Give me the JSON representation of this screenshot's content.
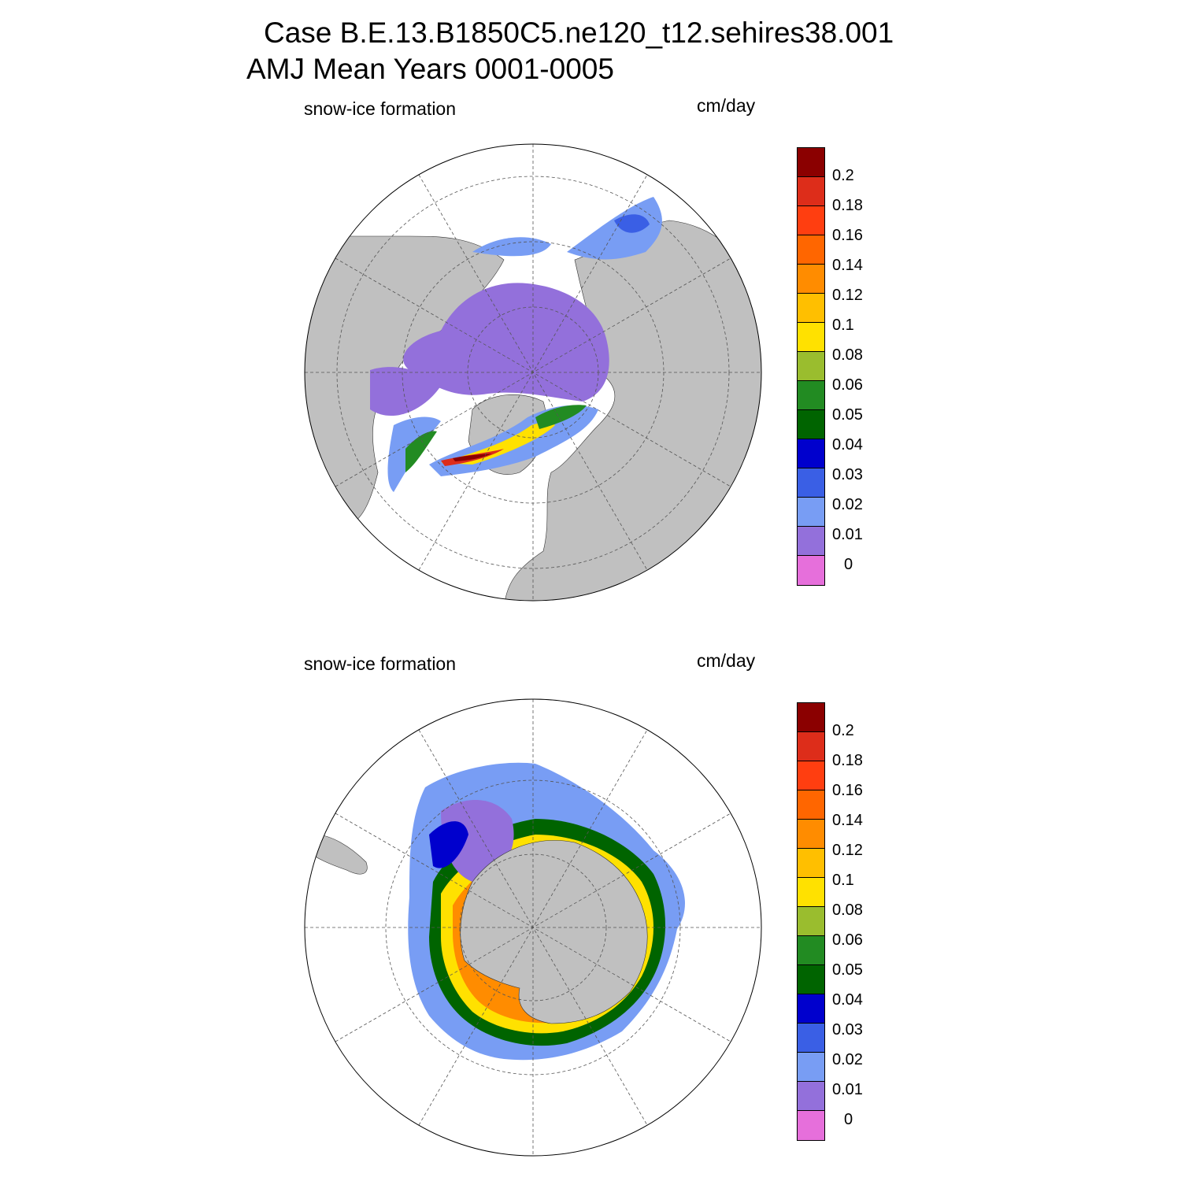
{
  "title": {
    "line1": "Case B.E.13.B1850C5.ne120_t12.sehires38.001",
    "line2": "AMJ Mean   Years 0001-0005"
  },
  "panels": [
    {
      "id": "north",
      "hemisphere": "Northern",
      "variable_label": "snow-ice formation",
      "units_label": "cm/day"
    },
    {
      "id": "south",
      "hemisphere": "Southern",
      "variable_label": "snow-ice formation",
      "units_label": "cm/day"
    }
  ],
  "colorbar": {
    "colors": [
      "#8b0000",
      "#dd2d1a",
      "#ff3e10",
      "#ff6600",
      "#ff8c00",
      "#ffbf00",
      "#ffe100",
      "#9abd2e",
      "#228b22",
      "#006400",
      "#0000cd",
      "#3a5fe5",
      "#789df4",
      "#9370db",
      "#e66fdb"
    ],
    "tick_labels": [
      "0.2",
      "0.18",
      "0.16",
      "0.14",
      "0.12",
      "0.1",
      "0.08",
      "0.06",
      "0.05",
      "0.04",
      "0.03",
      "0.02",
      "0.01",
      "0"
    ]
  },
  "map_colors": {
    "land": "#c0c0c0",
    "ocean": "#ffffff",
    "grid": "#555555"
  }
}
